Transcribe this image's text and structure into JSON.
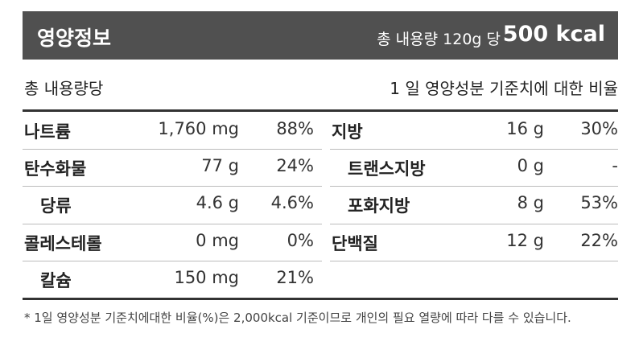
{
  "header": {
    "title": "영양정보",
    "serving": "총 내용량 120g 당",
    "calories": "500 kcal"
  },
  "subheader": {
    "left": "총 내용량당",
    "right": "1 일 영양성분 기준치에 대한 비율"
  },
  "table": {
    "left": [
      [
        "나트륨",
        "1,760 mg",
        "88%"
      ],
      [
        "탄수화물",
        "77 g",
        "24%"
      ],
      [
        "당류",
        "4.6 g",
        "4.6%"
      ],
      [
        "콜레스테롤",
        "0 mg",
        "0%"
      ],
      [
        "칼슘",
        "150 mg",
        "21%"
      ]
    ],
    "right": [
      [
        "지방",
        "16 g",
        "30%"
      ],
      [
        "트랜스지방",
        "0 g",
        "-"
      ],
      [
        "포화지방",
        "8 g",
        "53%"
      ],
      [
        "단백질",
        "12 g",
        "22%"
      ]
    ]
  },
  "footnote": "* 1일 영양성분 기준치에대한 비율(%)은 2,000kcal 기준이므로 개인의 필요 열량에 따라 다를 수 있습니다."
}
